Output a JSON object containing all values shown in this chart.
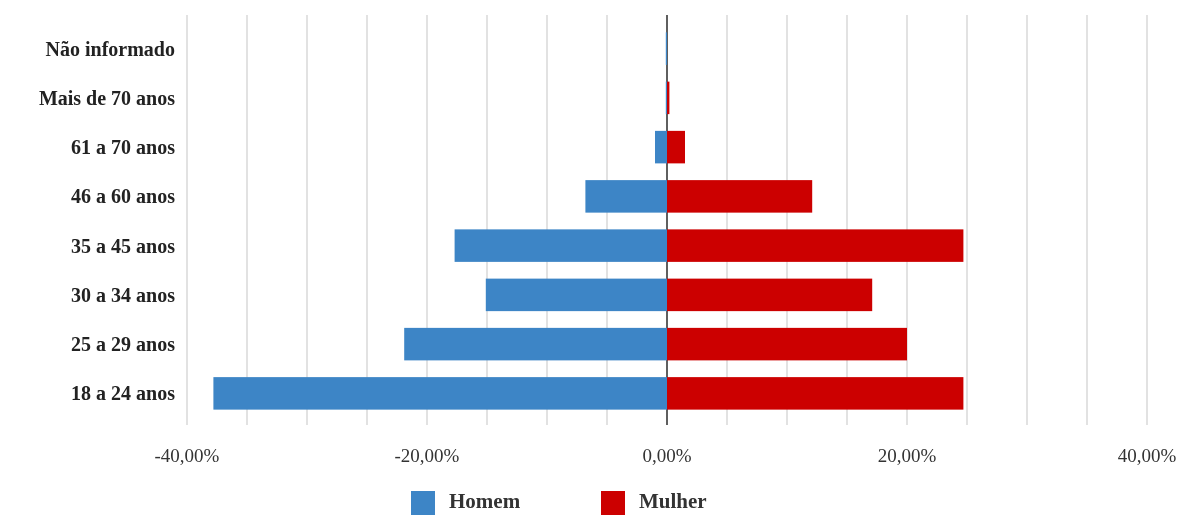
{
  "chart_data": {
    "type": "bar",
    "orientation": "horizontal",
    "categories": [
      "Não informado",
      "Mais de 70 anos",
      "61 a 70 anos",
      "46 a 60 anos",
      "35 a 45 anos",
      "30 a 34 anos",
      "25 a 29 anos",
      "18 a 24 anos"
    ],
    "series": [
      {
        "name": "Homem",
        "color": "#3d85c6",
        "values": [
          -0.1,
          -0.1,
          -1.0,
          -6.8,
          -17.7,
          -15.1,
          -21.9,
          -37.8
        ]
      },
      {
        "name": "Mulher",
        "color": "#cc0000",
        "values": [
          0,
          0.2,
          1.5,
          12.1,
          24.7,
          17.1,
          20.0,
          24.7
        ]
      }
    ],
    "xlim": [
      -40,
      40
    ],
    "xticks": [
      {
        "value": -40,
        "label": "-40,00%"
      },
      {
        "value": -35,
        "label": null
      },
      {
        "value": -30,
        "label": null
      },
      {
        "value": -25,
        "label": null
      },
      {
        "value": -20,
        "label": "-20,00%"
      },
      {
        "value": -15,
        "label": null
      },
      {
        "value": -10,
        "label": null
      },
      {
        "value": -5,
        "label": null
      },
      {
        "value": 0,
        "label": "0,00%"
      },
      {
        "value": 5,
        "label": null
      },
      {
        "value": 10,
        "label": null
      },
      {
        "value": 15,
        "label": null
      },
      {
        "value": 20,
        "label": "20,00%"
      },
      {
        "value": 25,
        "label": null
      },
      {
        "value": 30,
        "label": null
      },
      {
        "value": 35,
        "label": null
      },
      {
        "value": 40,
        "label": "40,00%"
      }
    ],
    "grid": "x",
    "legend": "bottom",
    "stacked": true
  }
}
